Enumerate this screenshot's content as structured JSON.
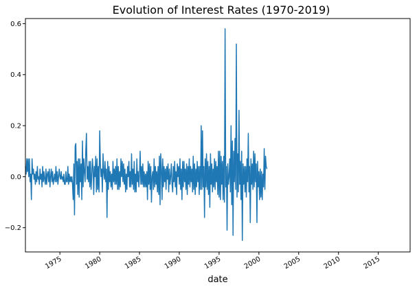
{
  "chart_data": {
    "type": "line",
    "title": "Evolution of Interest Rates (1970-2019)",
    "xlabel": "date",
    "ylabel": "",
    "xlim": [
      1970.67,
      2019.0
    ],
    "ylim": [
      -0.295,
      0.62
    ],
    "x_ticks": [
      1975,
      1980,
      1985,
      1990,
      1995,
      2000,
      2005,
      2010,
      2015
    ],
    "x_tick_labels": [
      "1975",
      "1980",
      "1985",
      "1990",
      "1995",
      "2000",
      "2005",
      "2010",
      "2015"
    ],
    "y_ticks": [
      -0.2,
      0.0,
      0.2,
      0.4,
      0.6
    ],
    "y_tick_labels": [
      "−0.2",
      "0.0",
      "0.2",
      "0.4",
      "0.6"
    ],
    "grid": false,
    "legend": "none",
    "series": [
      {
        "color": "#1f77b4",
        "x_start": 1970.67,
        "x_step": 0.08333,
        "values": [
          0.04,
          0.01,
          0.07,
          0.02,
          0.07,
          0.0,
          0.07,
          -0.02,
          0.01,
          -0.09,
          0.07,
          0.01,
          0.03,
          -0.01,
          0.01,
          -0.03,
          0.02,
          -0.02,
          0.04,
          -0.01,
          0.0,
          -0.03,
          0.03,
          -0.01,
          0.01,
          -0.04,
          0.04,
          -0.02,
          0.02,
          -0.01,
          -0.03,
          0.03,
          -0.03,
          0.01,
          0.02,
          -0.02,
          0.03,
          -0.04,
          0.0,
          0.03,
          -0.02,
          0.02,
          -0.03,
          -0.01,
          0.01,
          -0.02,
          0.04,
          -0.02,
          0.02,
          -0.03,
          0.0,
          0.03,
          0.0,
          -0.01,
          0.02,
          -0.01,
          0.0,
          -0.02,
          0.01,
          -0.03,
          -0.03,
          0.02,
          -0.02,
          -0.02,
          0.04,
          -0.03,
          0.01,
          -0.02,
          0.0,
          -0.02,
          0.0,
          -0.03,
          -0.09,
          0.05,
          -0.15,
          0.12,
          0.13,
          -0.03,
          0.06,
          -0.07,
          0.07,
          -0.08,
          0.07,
          -0.02,
          0.05,
          -0.09,
          0.14,
          -0.04,
          0.07,
          0.02,
          -0.02,
          0.1,
          0.17,
          -0.01,
          0.04,
          -0.02,
          0.06,
          -0.04,
          0.06,
          -0.05,
          0.0,
          0.07,
          0.03,
          -0.07,
          0.04,
          0.0,
          0.08,
          -0.06,
          0.07,
          -0.05,
          0.04,
          -0.06,
          0.18,
          0.05,
          0.0,
          0.03,
          -0.06,
          0.09,
          0.02,
          -0.01,
          0.06,
          -0.02,
          0.03,
          -0.16,
          0.06,
          -0.05,
          0.04,
          -0.02,
          0.02,
          -0.04,
          0.01,
          -0.05,
          0.06,
          -0.02,
          0.03,
          -0.03,
          0.04,
          -0.03,
          0.07,
          -0.05,
          0.04,
          -0.05,
          0.02,
          -0.04,
          0.07,
          0.0,
          0.06,
          -0.02,
          0.05,
          -0.03,
          0.03,
          -0.06,
          0.01,
          -0.05,
          0.04,
          0.0,
          0.06,
          -0.04,
          0.02,
          -0.04,
          0.09,
          -0.03,
          0.03,
          -0.05,
          0.06,
          -0.06,
          0.01,
          -0.06,
          0.07,
          -0.02,
          0.02,
          -0.04,
          0.01,
          0.1,
          -0.03,
          0.04,
          -0.03,
          0.05,
          -0.04,
          0.02,
          -0.04,
          0.01,
          -0.04,
          0.02,
          -0.09,
          0.06,
          -0.03,
          0.05,
          -0.05,
          0.04,
          -0.1,
          0.0,
          0.02,
          -0.05,
          0.07,
          -0.04,
          0.04,
          -0.03,
          0.02,
          -0.06,
          0.04,
          -0.07,
          0.08,
          -0.11,
          0.09,
          0.03,
          -0.09,
          0.07,
          -0.04,
          0.04,
          -0.02,
          0.03,
          -0.05,
          0.04,
          -0.01,
          0.05,
          -0.06,
          0.03,
          -0.03,
          0.0,
          0.05,
          -0.03,
          -0.06,
          0.04,
          -0.02,
          0.06,
          -0.04,
          0.02,
          -0.07,
          0.05,
          0.0,
          0.04,
          -0.03,
          0.07,
          -0.05,
          0.03,
          -0.09,
          0.06,
          -0.04,
          0.06,
          -0.02,
          0.03,
          -0.05,
          0.05,
          -0.07,
          0.04,
          -0.03,
          0.07,
          -0.04,
          0.04,
          -0.02,
          0.03,
          -0.06,
          0.08,
          -0.05,
          0.05,
          -0.07,
          0.03,
          -0.04,
          0.06,
          -0.02,
          0.04,
          -0.07,
          0.04,
          -0.05,
          0.2,
          -0.05,
          0.18,
          -0.04,
          0.04,
          -0.16,
          0.07,
          -0.04,
          0.09,
          -0.05,
          0.06,
          -0.07,
          0.04,
          -0.12,
          0.09,
          -0.03,
          0.05,
          -0.06,
          0.03,
          -0.04,
          0.07,
          -0.05,
          0.06,
          -0.02,
          0.04,
          -0.07,
          0.1,
          -0.08,
          0.1,
          -0.09,
          0.08,
          -0.03,
          0.06,
          -0.09,
          0.08,
          -0.1,
          0.58,
          -0.04,
          0.04,
          -0.21,
          0.05,
          -0.03,
          0.0,
          0.07,
          -0.06,
          0.2,
          -0.11,
          0.14,
          -0.23,
          0.1,
          -0.02,
          0.15,
          -0.05,
          0.52,
          -0.08,
          0.09,
          -0.06,
          0.26,
          -0.03,
          0.06,
          -0.09,
          0.1,
          -0.25,
          0.05,
          -0.03,
          0.04,
          -0.06,
          0.04,
          -0.08,
          0.07,
          -0.02,
          0.17,
          -0.06,
          0.04,
          -0.18,
          0.07,
          -0.03,
          0.05,
          -0.05,
          0.1,
          -0.04,
          0.09,
          -0.02,
          0.05,
          -0.18,
          0.06,
          -0.04,
          0.02,
          -0.09,
          0.03,
          -0.08,
          0.02,
          -0.09,
          0.01,
          -0.04,
          0.11,
          -0.05,
          0.08,
          0.04,
          0.03
        ]
      }
    ]
  }
}
